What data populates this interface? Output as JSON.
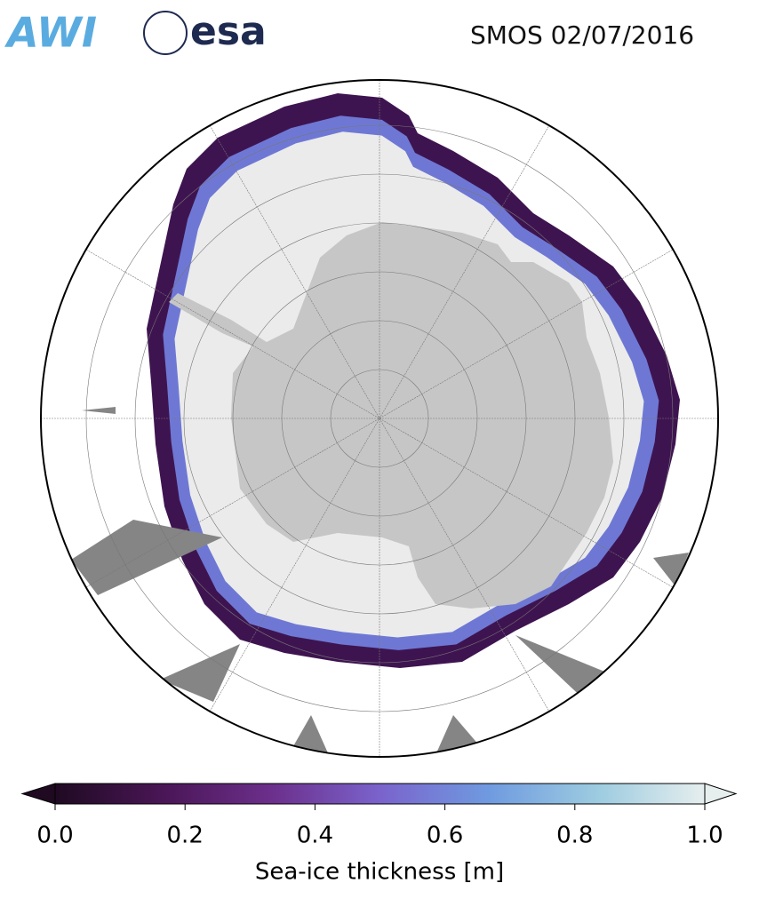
{
  "header": {
    "logos": [
      "AWI",
      "esa"
    ],
    "title": "SMOS 02/07/2016"
  },
  "colorbar": {
    "label": "Sea-ice thickness [m]",
    "lim": [
      0,
      1
    ],
    "ticks": [
      {
        "value": 0,
        "label": "0.0"
      },
      0.2,
      0.4,
      0.6,
      0.8,
      {
        "value": 1,
        "label": "1.0"
      }
    ],
    "colors": [
      "#1f0a22",
      "#4a1656",
      "#6c2f8c",
      "#7a63cc",
      "#6f9ae0",
      "#9ccbe0",
      "#e6eeee"
    ]
  }
}
